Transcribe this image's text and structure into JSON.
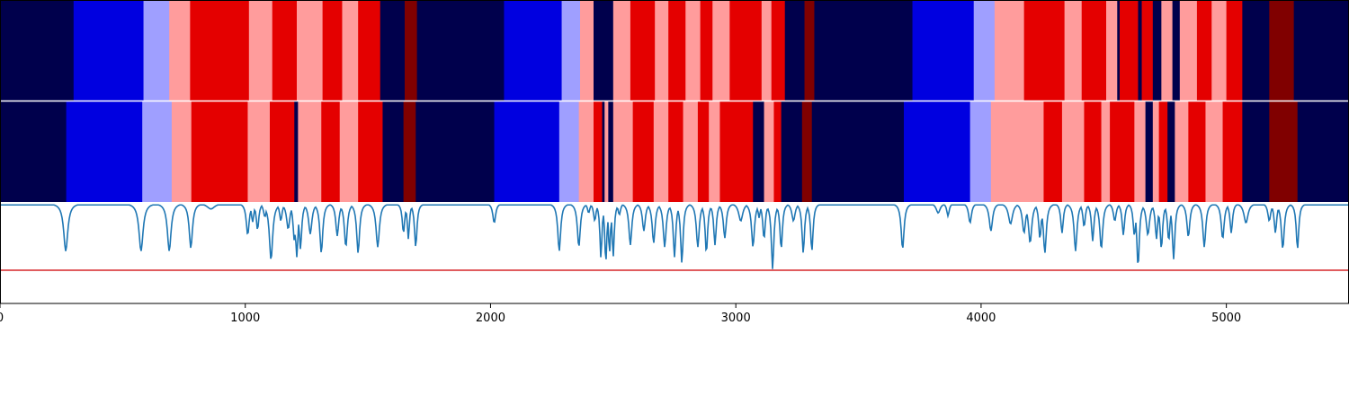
{
  "chart_data": {
    "type": "heatmap",
    "title": "",
    "xlabel": "",
    "ylabel": "",
    "xlim": [
      0,
      5500
    ],
    "grid": false,
    "x_ticks": [
      0,
      1000,
      2000,
      3000,
      4000,
      5000
    ],
    "x_tick_labels": [
      "0",
      "1000",
      "2000",
      "3000",
      "4000",
      "5000"
    ],
    "state_colors": {
      "0": "#00004c",
      "1": "#0000e0",
      "2": "#9f9fff",
      "3": "#ff9c9c",
      "4": "#e40000",
      "5": "#800000"
    },
    "tracks": [
      {
        "segments": [
          [
            0,
            300,
            0
          ],
          [
            300,
            585,
            1
          ],
          [
            585,
            690,
            2
          ],
          [
            690,
            775,
            3
          ],
          [
            775,
            1015,
            4
          ],
          [
            1015,
            1110,
            3
          ],
          [
            1110,
            1210,
            4
          ],
          [
            1210,
            1315,
            3
          ],
          [
            1315,
            1395,
            4
          ],
          [
            1395,
            1460,
            3
          ],
          [
            1460,
            1550,
            4
          ],
          [
            1550,
            1650,
            0
          ],
          [
            1650,
            1700,
            5
          ],
          [
            1700,
            2055,
            0
          ],
          [
            2055,
            2290,
            1
          ],
          [
            2290,
            2365,
            2
          ],
          [
            2365,
            2420,
            3
          ],
          [
            2420,
            2500,
            0
          ],
          [
            2500,
            2570,
            3
          ],
          [
            2570,
            2670,
            4
          ],
          [
            2670,
            2725,
            3
          ],
          [
            2725,
            2795,
            4
          ],
          [
            2795,
            2855,
            3
          ],
          [
            2855,
            2905,
            4
          ],
          [
            2905,
            2975,
            3
          ],
          [
            2975,
            3105,
            4
          ],
          [
            3105,
            3145,
            3
          ],
          [
            3145,
            3200,
            4
          ],
          [
            3200,
            3280,
            0
          ],
          [
            3280,
            3320,
            5
          ],
          [
            3320,
            3720,
            0
          ],
          [
            3720,
            3970,
            1
          ],
          [
            3970,
            4055,
            2
          ],
          [
            4055,
            4175,
            3
          ],
          [
            4175,
            4340,
            4
          ],
          [
            4340,
            4410,
            3
          ],
          [
            4410,
            4510,
            4
          ],
          [
            4510,
            4555,
            3
          ],
          [
            4555,
            4565,
            0
          ],
          [
            4565,
            4640,
            4
          ],
          [
            4640,
            4655,
            0
          ],
          [
            4655,
            4700,
            4
          ],
          [
            4700,
            4735,
            0
          ],
          [
            4735,
            4780,
            3
          ],
          [
            4780,
            4810,
            0
          ],
          [
            4810,
            4880,
            3
          ],
          [
            4880,
            4940,
            4
          ],
          [
            4940,
            5000,
            3
          ],
          [
            5000,
            5065,
            4
          ],
          [
            5065,
            5175,
            0
          ],
          [
            5175,
            5275,
            5
          ],
          [
            5275,
            5500,
            0
          ]
        ]
      },
      {
        "segments": [
          [
            0,
            270,
            0
          ],
          [
            270,
            580,
            1
          ],
          [
            580,
            700,
            2
          ],
          [
            700,
            780,
            3
          ],
          [
            780,
            1010,
            4
          ],
          [
            1010,
            1100,
            3
          ],
          [
            1100,
            1200,
            4
          ],
          [
            1200,
            1215,
            0
          ],
          [
            1215,
            1310,
            3
          ],
          [
            1310,
            1385,
            4
          ],
          [
            1385,
            1460,
            3
          ],
          [
            1460,
            1560,
            4
          ],
          [
            1560,
            1645,
            0
          ],
          [
            1645,
            1695,
            5
          ],
          [
            1695,
            2015,
            0
          ],
          [
            2015,
            2280,
            1
          ],
          [
            2280,
            2360,
            2
          ],
          [
            2360,
            2420,
            3
          ],
          [
            2420,
            2455,
            4
          ],
          [
            2455,
            2465,
            0
          ],
          [
            2465,
            2480,
            3
          ],
          [
            2480,
            2500,
            0
          ],
          [
            2500,
            2580,
            3
          ],
          [
            2580,
            2665,
            4
          ],
          [
            2665,
            2725,
            3
          ],
          [
            2725,
            2785,
            4
          ],
          [
            2785,
            2845,
            3
          ],
          [
            2845,
            2890,
            4
          ],
          [
            2890,
            2935,
            3
          ],
          [
            2935,
            3070,
            4
          ],
          [
            3070,
            3115,
            0
          ],
          [
            3115,
            3155,
            3
          ],
          [
            3155,
            3185,
            4
          ],
          [
            3185,
            3270,
            0
          ],
          [
            3270,
            3310,
            5
          ],
          [
            3310,
            3685,
            0
          ],
          [
            3685,
            3955,
            1
          ],
          [
            3955,
            4040,
            2
          ],
          [
            4040,
            4255,
            3
          ],
          [
            4255,
            4330,
            4
          ],
          [
            4330,
            4420,
            3
          ],
          [
            4420,
            4490,
            4
          ],
          [
            4490,
            4525,
            3
          ],
          [
            4525,
            4625,
            4
          ],
          [
            4625,
            4670,
            3
          ],
          [
            4670,
            4700,
            0
          ],
          [
            4700,
            4725,
            3
          ],
          [
            4725,
            4760,
            4
          ],
          [
            4760,
            4790,
            0
          ],
          [
            4790,
            4845,
            3
          ],
          [
            4845,
            4915,
            4
          ],
          [
            4915,
            4985,
            3
          ],
          [
            4985,
            5065,
            4
          ],
          [
            5065,
            5175,
            0
          ],
          [
            5175,
            5290,
            5
          ],
          [
            5290,
            5500,
            0
          ]
        ]
      }
    ],
    "line_panel": {
      "line_color": "#1f77b4",
      "threshold_color": "#d62728",
      "threshold_level": 0.67,
      "baseline_level": 0.02,
      "dips": [
        [
          268,
          0.48,
          10
        ],
        [
          575,
          0.48,
          10
        ],
        [
          690,
          0.48,
          9
        ],
        [
          778,
          0.45,
          8
        ],
        [
          860,
          0.06,
          20
        ],
        [
          1010,
          0.32,
          7
        ],
        [
          1030,
          0.19,
          6
        ],
        [
          1050,
          0.27,
          6
        ],
        [
          1080,
          0.14,
          7
        ],
        [
          1105,
          0.57,
          8
        ],
        [
          1145,
          0.18,
          6
        ],
        [
          1175,
          0.26,
          8
        ],
        [
          1200,
          0.38,
          6
        ],
        [
          1210,
          0.54,
          6
        ],
        [
          1225,
          0.46,
          6
        ],
        [
          1265,
          0.31,
          8
        ],
        [
          1310,
          0.5,
          7
        ],
        [
          1375,
          0.33,
          7
        ],
        [
          1410,
          0.44,
          7
        ],
        [
          1460,
          0.5,
          7
        ],
        [
          1540,
          0.44,
          8
        ],
        [
          1645,
          0.3,
          6
        ],
        [
          1665,
          0.36,
          5
        ],
        [
          1695,
          0.44,
          6
        ],
        [
          2015,
          0.2,
          7
        ],
        [
          2280,
          0.48,
          7
        ],
        [
          2360,
          0.44,
          7
        ],
        [
          2400,
          0.1,
          6
        ],
        [
          2425,
          0.18,
          6
        ],
        [
          2450,
          0.55,
          5
        ],
        [
          2470,
          0.6,
          5
        ],
        [
          2485,
          0.5,
          5
        ],
        [
          2500,
          0.54,
          5
        ],
        [
          2525,
          0.12,
          6
        ],
        [
          2570,
          0.42,
          7
        ],
        [
          2625,
          0.28,
          7
        ],
        [
          2665,
          0.4,
          7
        ],
        [
          2710,
          0.44,
          7
        ],
        [
          2750,
          0.54,
          6
        ],
        [
          2780,
          0.6,
          6
        ],
        [
          2845,
          0.44,
          7
        ],
        [
          2880,
          0.5,
          6
        ],
        [
          2915,
          0.42,
          6
        ],
        [
          2955,
          0.35,
          7
        ],
        [
          3020,
          0.18,
          10
        ],
        [
          3070,
          0.44,
          7
        ],
        [
          3095,
          0.15,
          5
        ],
        [
          3115,
          0.36,
          6
        ],
        [
          3150,
          0.66,
          6
        ],
        [
          3185,
          0.46,
          6
        ],
        [
          3235,
          0.18,
          8
        ],
        [
          3275,
          0.5,
          6
        ],
        [
          3310,
          0.48,
          6
        ],
        [
          3680,
          0.46,
          7
        ],
        [
          3825,
          0.1,
          10
        ],
        [
          3865,
          0.13,
          6
        ],
        [
          3955,
          0.2,
          7
        ],
        [
          4040,
          0.28,
          8
        ],
        [
          4120,
          0.21,
          10
        ],
        [
          4175,
          0.3,
          8
        ],
        [
          4200,
          0.4,
          8
        ],
        [
          4240,
          0.36,
          6
        ],
        [
          4260,
          0.5,
          7
        ],
        [
          4330,
          0.3,
          6
        ],
        [
          4385,
          0.48,
          7
        ],
        [
          4420,
          0.24,
          6
        ],
        [
          4455,
          0.38,
          6
        ],
        [
          4490,
          0.46,
          7
        ],
        [
          4545,
          0.18,
          7
        ],
        [
          4580,
          0.32,
          6
        ],
        [
          4625,
          0.33,
          6
        ],
        [
          4640,
          0.64,
          6
        ],
        [
          4680,
          0.32,
          8
        ],
        [
          4715,
          0.36,
          6
        ],
        [
          4735,
          0.46,
          6
        ],
        [
          4765,
          0.38,
          6
        ],
        [
          4785,
          0.56,
          6
        ],
        [
          4845,
          0.34,
          7
        ],
        [
          4910,
          0.44,
          7
        ],
        [
          4985,
          0.36,
          7
        ],
        [
          5020,
          0.3,
          6
        ],
        [
          5080,
          0.2,
          10
        ],
        [
          5175,
          0.18,
          7
        ],
        [
          5200,
          0.3,
          6
        ],
        [
          5230,
          0.46,
          7
        ],
        [
          5290,
          0.46,
          6
        ]
      ]
    }
  }
}
